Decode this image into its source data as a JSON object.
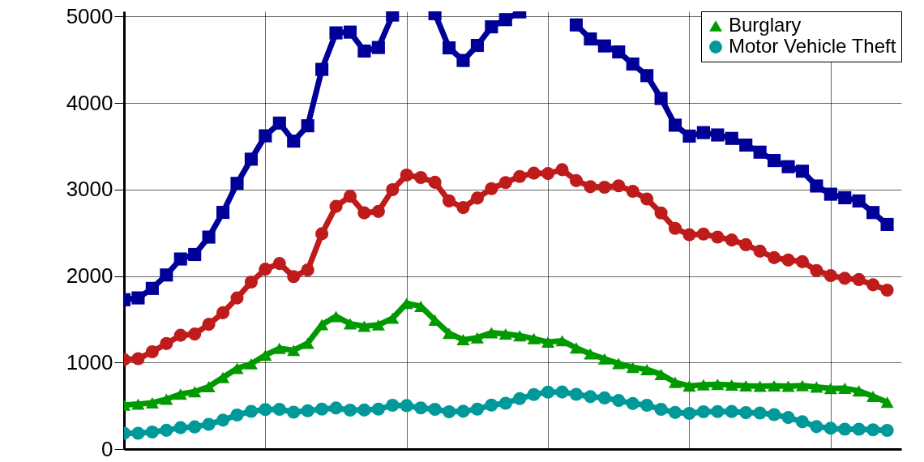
{
  "chart_data": {
    "type": "line",
    "categories": [
      null,
      null,
      null,
      null,
      null,
      null,
      null,
      null,
      null,
      null,
      null,
      null,
      null,
      null,
      null,
      null,
      null,
      null,
      null,
      null,
      null,
      null,
      null,
      null,
      null,
      null,
      null,
      null,
      null,
      null,
      null,
      null,
      null,
      null,
      null,
      null,
      null,
      null,
      null,
      null,
      null,
      null,
      null,
      null,
      null,
      null,
      null,
      null,
      null,
      null,
      null,
      null,
      null,
      null,
      null
    ],
    "series": [
      {
        "color": "#000099",
        "marker": "square",
        "values": [
          1726,
          1747,
          1857,
          2012,
          2197,
          2249,
          2450,
          2736,
          3071,
          3351,
          3621,
          3768,
          3560,
          3737,
          4389,
          4811,
          4820,
          4601,
          4642,
          5017,
          null,
          null,
          5033,
          4638,
          4492,
          4666,
          4881,
          4964,
          5054,
          null,
          null,
          null,
          4903,
          4741,
          4660,
          4591,
          4451,
          4317,
          4053,
          3744,
          3618,
          3658,
          3631,
          3591,
          3514,
          3432,
          3335,
          3264,
          3212,
          3041,
          2946,
          2905,
          2868,
          2734,
          2596
        ]
      },
      {
        "color": "#bf1b1b",
        "marker": "circle",
        "values": [
          1034,
          1045,
          1124,
          1219,
          1315,
          1329,
          1442,
          1575,
          1746,
          1930,
          2079,
          2145,
          1993,
          2071,
          2489,
          2805,
          2922,
          2730,
          2747,
          2999,
          3167,
          3139,
          3084,
          2869,
          2791,
          2901,
          3010,
          3081,
          3151,
          3189,
          3185,
          3229,
          3103,
          3033,
          3027,
          3043,
          2980,
          2891,
          2729,
          2551,
          2477,
          2485,
          2450,
          2416,
          2362,
          2288,
          2213,
          2185,
          2166,
          2064,
          2005,
          1974,
          1959,
          1899,
          1837
        ]
      },
      {
        "name": "Burglary",
        "color": "#009900",
        "marker": "triangle",
        "values": [
          509,
          519,
          535,
          576,
          635,
          663,
          721,
          827,
          932,
          985,
          1085,
          1164,
          1141,
          1223,
          1438,
          1533,
          1448,
          1420,
          1435,
          1512,
          1684,
          1650,
          1489,
          1338,
          1264,
          1287,
          1345,
          1330,
          1309,
          1276,
          1236,
          1252,
          1168,
          1100,
          1042,
          988,
          945,
          919,
          863,
          770,
          729,
          742,
          747,
          741,
          730,
          727,
          730,
          727,
          733,
          717,
          701,
          702,
          672,
          610,
          542
        ]
      },
      {
        "name": "Motor Vehicle Theft",
        "color": "#009999",
        "marker": "circle",
        "values": [
          183,
          183,
          197,
          217,
          247,
          256,
          286,
          334,
          393,
          436,
          457,
          459,
          426,
          443,
          462,
          474,
          450,
          451,
          461,
          506,
          502,
          475,
          459,
          431,
          437,
          462,
          508,
          530,
          583,
          630,
          658,
          659,
          632,
          606,
          591,
          561,
          526,
          506,
          459,
          423,
          412,
          431,
          433,
          434,
          421,
          417,
          398,
          364,
          315,
          259,
          240,
          230,
          230,
          222,
          216
        ]
      }
    ],
    "ylim": [
      0,
      5060
    ],
    "yticks": [
      0,
      1000,
      2000,
      3000,
      4000,
      5000
    ],
    "grid": true,
    "legend": "top right",
    "line_style": "solid"
  }
}
